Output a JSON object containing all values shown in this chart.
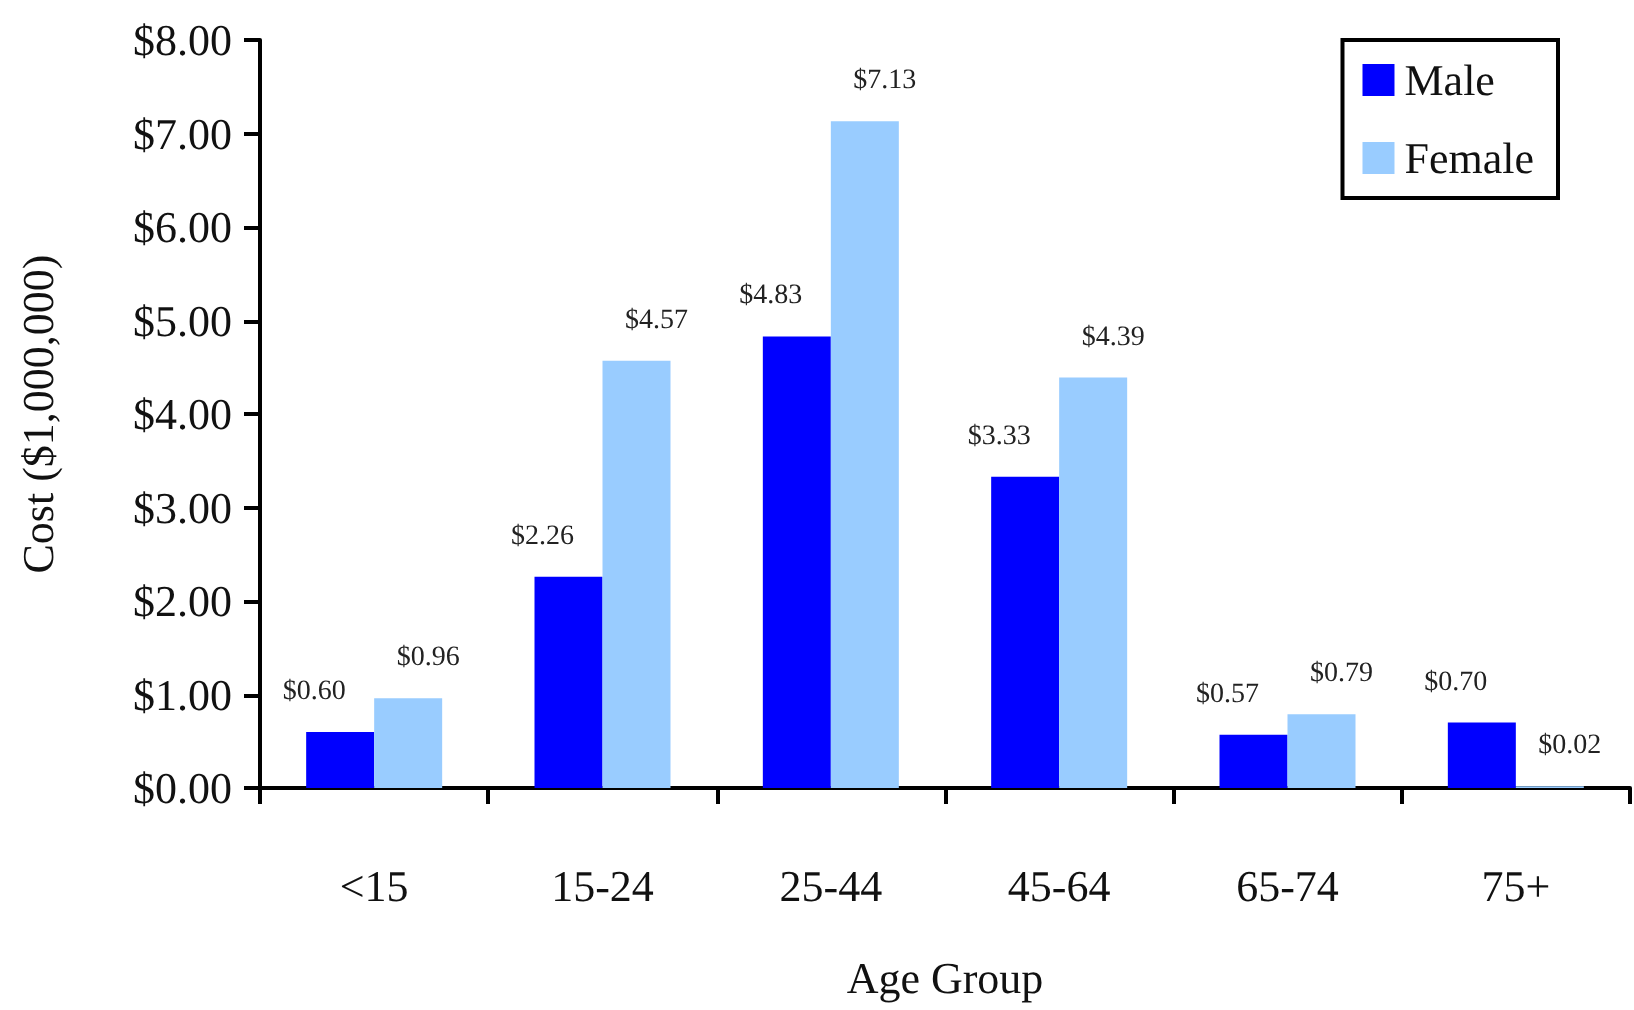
{
  "chart_data": {
    "type": "bar",
    "xlabel": "Age Group",
    "ylabel": "Cost ($1,000,000)",
    "categories": [
      "<15",
      "15-24",
      "25-44",
      "45-64",
      "65-74",
      "75+"
    ],
    "series": [
      {
        "name": "Male",
        "color": "#0000ff",
        "values": [
          0.6,
          2.26,
          4.83,
          3.33,
          0.57,
          0.7
        ],
        "value_labels": [
          "$0.60",
          "$2.26",
          "$4.83",
          "$3.33",
          "$0.57",
          "$0.70"
        ]
      },
      {
        "name": "Female",
        "color": "#99ccff",
        "values": [
          0.96,
          4.57,
          7.13,
          4.39,
          0.79,
          0.02
        ],
        "value_labels": [
          "$0.96",
          "$4.57",
          "$7.13",
          "$4.39",
          "$0.79",
          "$0.02"
        ]
      }
    ],
    "ylim": [
      0,
      8
    ],
    "yticks": [
      {
        "value": 0,
        "label": "$0.00"
      },
      {
        "value": 1,
        "label": "$1.00"
      },
      {
        "value": 2,
        "label": "$2.00"
      },
      {
        "value": 3,
        "label": "$3.00"
      },
      {
        "value": 4,
        "label": "$4.00"
      },
      {
        "value": 5,
        "label": "$5.00"
      },
      {
        "value": 6,
        "label": "$6.00"
      },
      {
        "value": 7,
        "label": "$7.00"
      },
      {
        "value": 8,
        "label": "$8.00"
      }
    ],
    "legend": "top right",
    "grid": false
  }
}
